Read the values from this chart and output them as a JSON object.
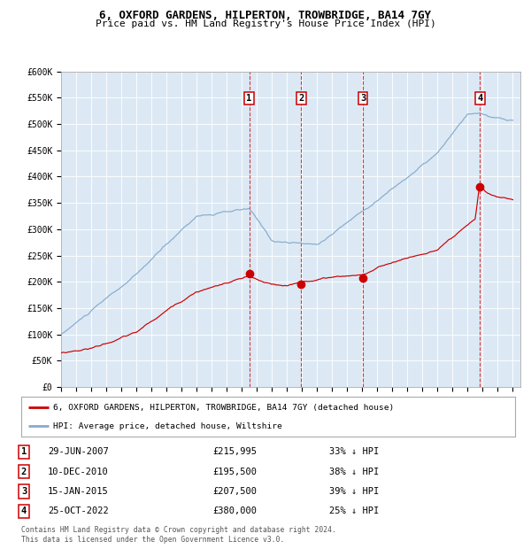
{
  "title1": "6, OXFORD GARDENS, HILPERTON, TROWBRIDGE, BA14 7GY",
  "title2": "Price paid vs. HM Land Registry's House Price Index (HPI)",
  "background_color": "#dce9f5",
  "plot_bg": "#dce9f5",
  "hpi_color": "#88aacc",
  "price_color": "#cc0000",
  "sale_dates": [
    2007.49,
    2010.94,
    2015.04,
    2022.81
  ],
  "sale_prices": [
    215995,
    195500,
    207500,
    380000
  ],
  "sale_labels": [
    "1",
    "2",
    "3",
    "4"
  ],
  "legend_line1": "6, OXFORD GARDENS, HILPERTON, TROWBRIDGE, BA14 7GY (detached house)",
  "legend_line2": "HPI: Average price, detached house, Wiltshire",
  "table_entries": [
    [
      "1",
      "29-JUN-2007",
      "£215,995",
      "33% ↓ HPI"
    ],
    [
      "2",
      "10-DEC-2010",
      "£195,500",
      "38% ↓ HPI"
    ],
    [
      "3",
      "15-JAN-2015",
      "£207,500",
      "39% ↓ HPI"
    ],
    [
      "4",
      "25-OCT-2022",
      "£380,000",
      "25% ↓ HPI"
    ]
  ],
  "footnote": "Contains HM Land Registry data © Crown copyright and database right 2024.\nThis data is licensed under the Open Government Licence v3.0.",
  "ylim": [
    0,
    600000
  ],
  "yticks": [
    0,
    50000,
    100000,
    150000,
    200000,
    250000,
    300000,
    350000,
    400000,
    450000,
    500000,
    550000,
    600000
  ],
  "ytick_labels": [
    "£0",
    "£50K",
    "£100K",
    "£150K",
    "£200K",
    "£250K",
    "£300K",
    "£350K",
    "£400K",
    "£450K",
    "£500K",
    "£550K",
    "£600K"
  ],
  "xmin": 1995.0,
  "xmax": 2025.5,
  "hpi_seed": 10,
  "price_seed": 20
}
